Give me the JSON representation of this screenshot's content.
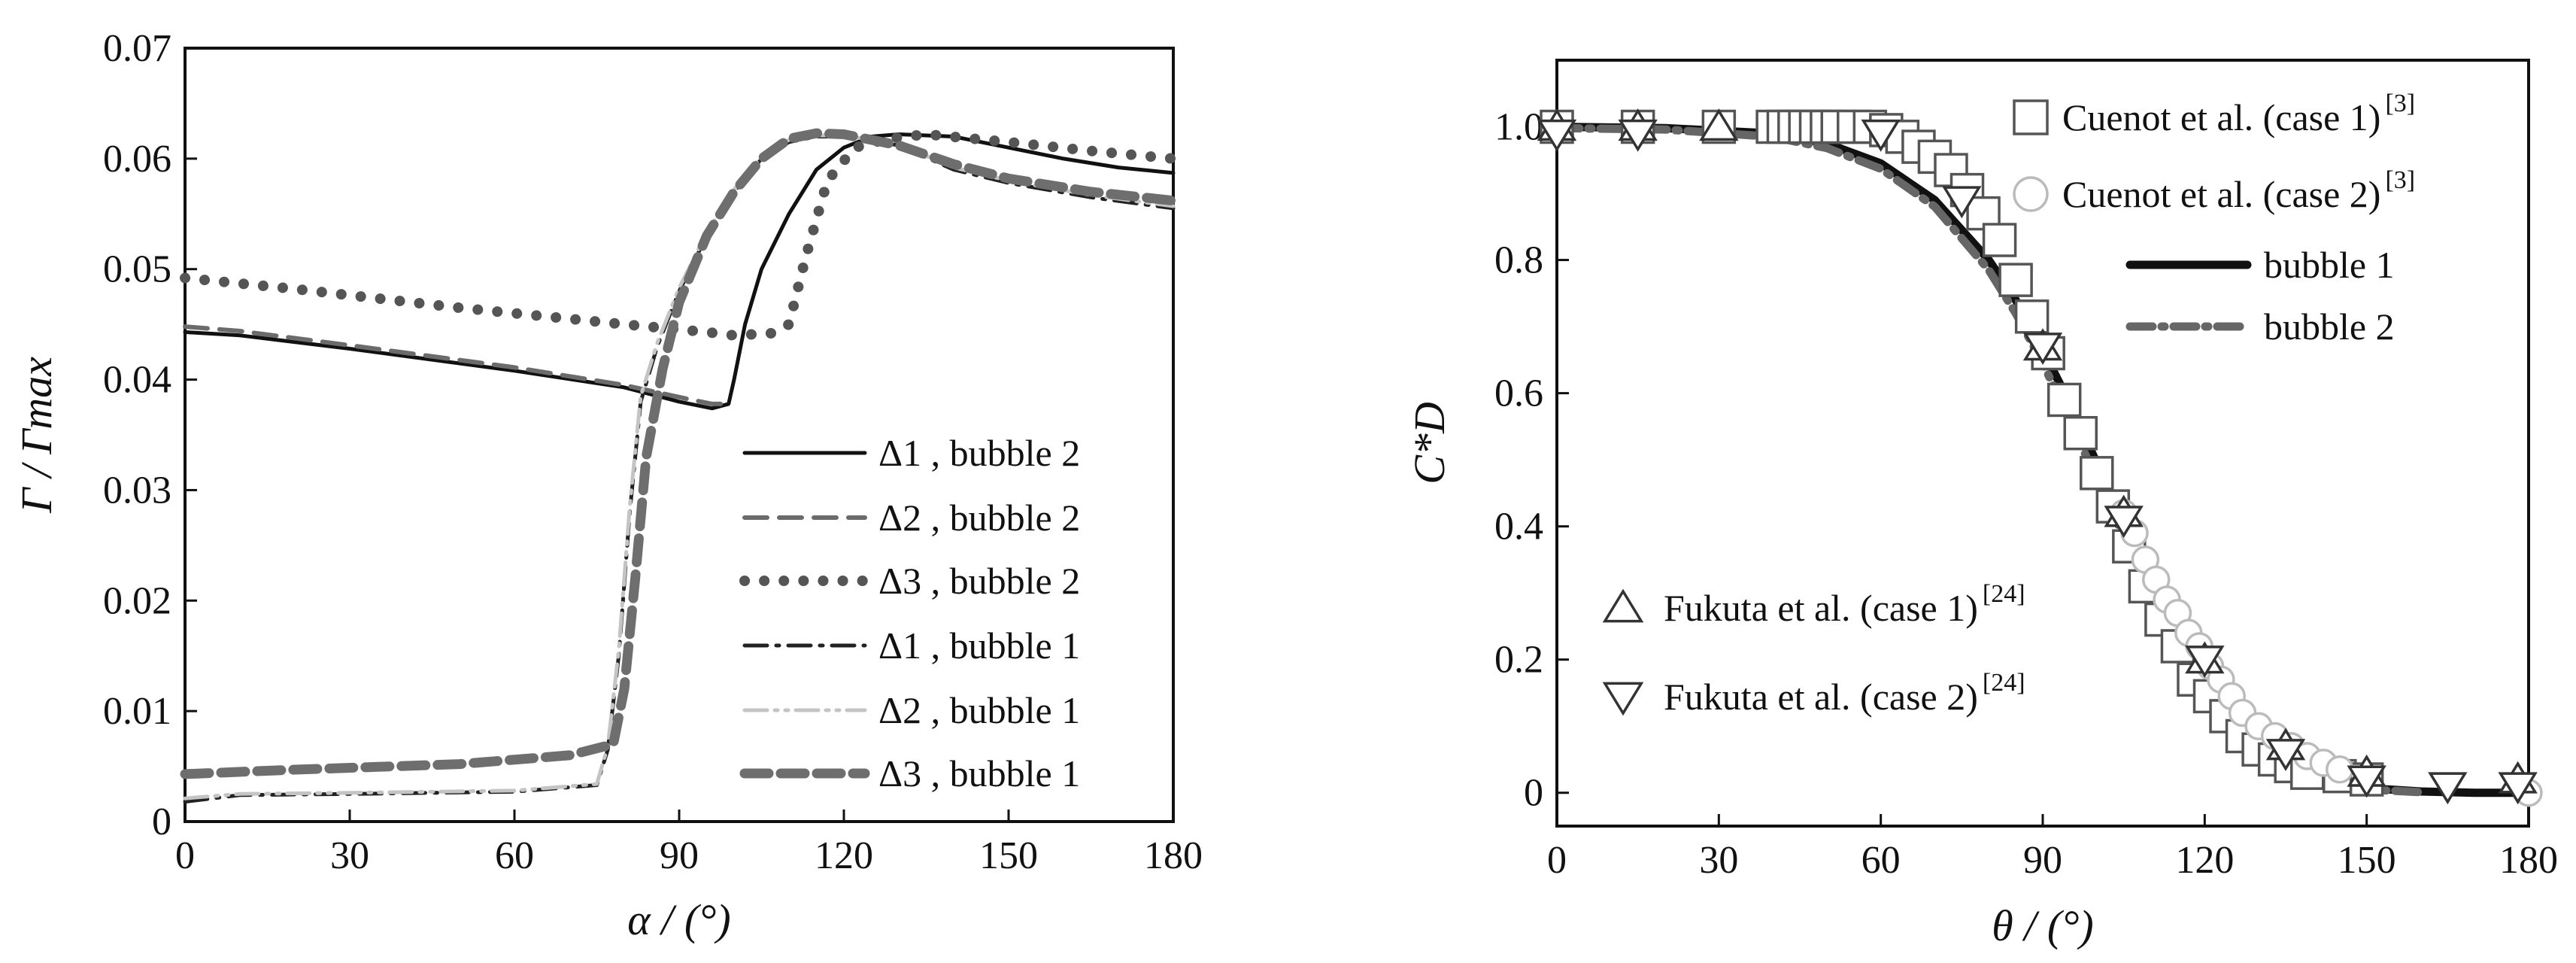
{
  "chart_data": [
    {
      "type": "line",
      "title": "",
      "xlabel": "α / (°)",
      "ylabel": "Γ / Γmax",
      "xlim": [
        0,
        180
      ],
      "ylim": [
        0,
        0.07
      ],
      "xticks": [
        "0",
        "30",
        "60",
        "90",
        "120",
        "150",
        "180"
      ],
      "yticks": [
        "0",
        "0.01",
        "0.02",
        "0.03",
        "0.04",
        "0.05",
        "0.06",
        "0.07"
      ],
      "grid": false,
      "legend_position": "lower-right",
      "series": [
        {
          "name": "Δ1 , bubble 2",
          "color": "#111111",
          "style": "solid",
          "x": [
            0,
            10,
            30,
            60,
            80,
            90,
            96,
            99,
            100,
            102,
            105,
            110,
            115,
            120,
            125,
            130,
            140,
            150,
            160,
            170,
            180
          ],
          "y": [
            0.0443,
            0.044,
            0.0428,
            0.0408,
            0.0393,
            0.038,
            0.0374,
            0.0378,
            0.04,
            0.045,
            0.05,
            0.055,
            0.059,
            0.061,
            0.062,
            0.0622,
            0.062,
            0.061,
            0.06,
            0.0592,
            0.0587
          ]
        },
        {
          "name": "Δ2 , bubble 2",
          "color": "#6b6b6b",
          "style": "dash",
          "x": [
            0,
            10,
            30,
            60,
            80,
            92,
            96,
            98
          ],
          "y": [
            0.0448,
            0.0444,
            0.0431,
            0.0411,
            0.0395,
            0.0382,
            0.0378,
            0.0378
          ]
        },
        {
          "name": "Δ3 , bubble 2",
          "color": "#555555",
          "style": "dot",
          "x": [
            0,
            20,
            50,
            80,
            95,
            100,
            107,
            110,
            113,
            117,
            122,
            128,
            135,
            150,
            165,
            180
          ],
          "y": [
            0.0492,
            0.0482,
            0.0465,
            0.045,
            0.0443,
            0.044,
            0.0442,
            0.045,
            0.051,
            0.058,
            0.061,
            0.0618,
            0.0622,
            0.0615,
            0.0607,
            0.06
          ]
        },
        {
          "name": "Δ1 , bubble 1",
          "color": "#222222",
          "style": "dashdot",
          "x": [
            0,
            10,
            30,
            60,
            75,
            77,
            79,
            81,
            83,
            86,
            90,
            95,
            100,
            105,
            110,
            115,
            120,
            130,
            140,
            150,
            165,
            180
          ],
          "y": [
            0.0018,
            0.0024,
            0.0025,
            0.0027,
            0.0033,
            0.0065,
            0.015,
            0.028,
            0.038,
            0.043,
            0.048,
            0.053,
            0.057,
            0.06,
            0.0615,
            0.062,
            0.062,
            0.0612,
            0.059,
            0.0578,
            0.0565,
            0.0555
          ]
        },
        {
          "name": "Δ2 , bubble 1",
          "color": "#c4c4c4",
          "style": "dashdotdot",
          "x": [
            0,
            10,
            30,
            60,
            75,
            77,
            79,
            81,
            83,
            86,
            90,
            95,
            100,
            105,
            110,
            115,
            120,
            130,
            140,
            150,
            165,
            180
          ],
          "y": [
            0.0021,
            0.0025,
            0.0026,
            0.0028,
            0.0034,
            0.0068,
            0.0155,
            0.0285,
            0.0385,
            0.0433,
            0.0483,
            0.0533,
            0.0572,
            0.0602,
            0.0617,
            0.0621,
            0.0621,
            0.0613,
            0.0592,
            0.058,
            0.0567,
            0.0557
          ]
        },
        {
          "name": "Δ3 , bubble 1",
          "color": "#6e6e6e",
          "style": "heavydash",
          "x": [
            0,
            20,
            50,
            70,
            78,
            80,
            82,
            84,
            87,
            90,
            95,
            100,
            105,
            110,
            115,
            120,
            130,
            140,
            150,
            165,
            180
          ],
          "y": [
            0.0043,
            0.0047,
            0.0052,
            0.006,
            0.007,
            0.012,
            0.022,
            0.033,
            0.041,
            0.047,
            0.053,
            0.057,
            0.06,
            0.0618,
            0.0623,
            0.0622,
            0.0612,
            0.0595,
            0.0582,
            0.057,
            0.0562
          ]
        }
      ]
    },
    {
      "type": "line",
      "title": "",
      "xlabel": "θ / (°)",
      "ylabel": "C*D",
      "xlim": [
        0,
        180
      ],
      "ylim": [
        -0.05,
        1.1
      ],
      "xticks": [
        "0",
        "30",
        "60",
        "90",
        "120",
        "150",
        "180"
      ],
      "yticks": [
        "0",
        "0.2",
        "0.4",
        "0.6",
        "0.8",
        "1.0"
      ],
      "grid": false,
      "legend_position": "upper-right and lower-left",
      "series": [
        {
          "name": "bubble 1",
          "color": "#111111",
          "style": "solid",
          "x": [
            0,
            20,
            40,
            50,
            60,
            70,
            80,
            85,
            90,
            95,
            100,
            105,
            110,
            115,
            120,
            125,
            130,
            140,
            150,
            160,
            170,
            180
          ],
          "y": [
            1.0,
            0.998,
            0.99,
            0.975,
            0.945,
            0.89,
            0.8,
            0.74,
            0.665,
            0.585,
            0.495,
            0.41,
            0.32,
            0.24,
            0.17,
            0.115,
            0.07,
            0.025,
            0.007,
            0.002,
            0.0,
            0.0
          ]
        },
        {
          "name": "bubble 2",
          "color": "#666666",
          "style": "dashdot",
          "x": [
            0,
            20,
            40,
            50,
            60,
            70,
            80,
            85,
            90,
            95,
            100,
            105,
            110,
            115,
            120,
            125,
            130,
            140,
            150,
            160
          ],
          "y": [
            0.998,
            0.996,
            0.985,
            0.968,
            0.937,
            0.88,
            0.785,
            0.72,
            0.645,
            0.56,
            0.47,
            0.385,
            0.3,
            0.22,
            0.155,
            0.1,
            0.06,
            0.02,
            0.005,
            0.001
          ]
        },
        {
          "name": "Cuenot et al. (case 1)",
          "ref": "[3]",
          "color": "#555555",
          "marker": "square",
          "x": [
            0,
            15,
            30,
            40,
            42,
            44,
            46,
            48,
            50,
            52,
            55,
            58,
            61,
            64,
            67,
            70,
            73,
            76,
            79,
            82,
            85,
            88,
            91,
            94,
            97,
            100,
            103,
            106,
            109,
            112,
            115,
            118,
            121,
            124,
            127,
            130,
            133,
            136,
            139,
            145,
            150
          ],
          "y": [
            1.0,
            1.0,
            1.0,
            1.0,
            1.0,
            1.0,
            1.0,
            1.0,
            1.0,
            1.0,
            1.0,
            1.0,
            0.995,
            0.985,
            0.97,
            0.955,
            0.935,
            0.905,
            0.87,
            0.83,
            0.77,
            0.715,
            0.66,
            0.59,
            0.54,
            0.48,
            0.43,
            0.37,
            0.31,
            0.26,
            0.22,
            0.17,
            0.145,
            0.115,
            0.085,
            0.065,
            0.05,
            0.04,
            0.03,
            0.025,
            0.02
          ]
        },
        {
          "name": "Cuenot et al. (case 2)",
          "ref": "[3]",
          "color": "#bbbbbb",
          "marker": "circle",
          "x": [
            105,
            107,
            109,
            111,
            113,
            115,
            117,
            119,
            121,
            123,
            125,
            127,
            130,
            133,
            136,
            139,
            142,
            145,
            180
          ],
          "y": [
            0.42,
            0.39,
            0.35,
            0.32,
            0.29,
            0.27,
            0.24,
            0.22,
            0.19,
            0.17,
            0.145,
            0.12,
            0.1,
            0.085,
            0.07,
            0.055,
            0.045,
            0.035,
            0.0
          ]
        },
        {
          "name": "Fukuta et al. (case 1)",
          "ref": "[24]",
          "color": "#333333",
          "marker": "triangle-up",
          "x": [
            0,
            15,
            30,
            90,
            105,
            120,
            135,
            150,
            178
          ],
          "y": [
            1.0,
            1.0,
            1.0,
            0.67,
            0.42,
            0.2,
            0.07,
            0.03,
            0.02
          ]
        },
        {
          "name": "Fukuta et al. (case 2)",
          "ref": "[24]",
          "color": "#333333",
          "marker": "triangle-down",
          "x": [
            0,
            15,
            60,
            75,
            90,
            105,
            120,
            135,
            150,
            165,
            178
          ],
          "y": [
            0.99,
            0.99,
            0.99,
            0.89,
            0.67,
            0.41,
            0.2,
            0.06,
            0.02,
            0.01,
            0.01
          ]
        }
      ]
    }
  ]
}
